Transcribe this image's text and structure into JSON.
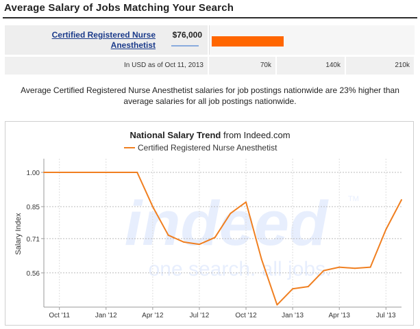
{
  "header": {
    "title": "Average Salary of Jobs Matching Your Search"
  },
  "salary_row": {
    "job_title": "Certified Registered Nurse Anesthetist",
    "salary": "$76,000",
    "bar_fraction_of_210k": 0.362,
    "bar_color": "#ff6600"
  },
  "scale_row": {
    "currency_note": "In USD as of Oct 11, 2013",
    "ticks": [
      "70k",
      "140k",
      "210k"
    ]
  },
  "summary": "Average Certified Registered Nurse Anesthetist salaries for job postings nationwide are 23% higher than average salaries for all job postings nationwide.",
  "watermark": {
    "brand": "indeed",
    "tagline": "one search. all jobs.",
    "tm": "TM"
  },
  "chart_data": {
    "type": "line",
    "title": "National Salary Trend",
    "title_suffix": "from Indeed.com",
    "ylabel": "Salary Index",
    "xlabel": "",
    "ylim": [
      0.41,
      1.06
    ],
    "yticks": [
      1.0,
      0.85,
      0.71,
      0.56
    ],
    "ytick_labels": [
      "1.00",
      "0.85",
      "0.71",
      "0.56"
    ],
    "xtick_labels": [
      "Oct '11",
      "Jan '12",
      "Apr '12",
      "Jul '12",
      "Oct '12",
      "Jan '13",
      "Apr '13",
      "Jul '13"
    ],
    "xtick_months": [
      1,
      4,
      7,
      10,
      13,
      16,
      19,
      22
    ],
    "grid": true,
    "legend_position": "top",
    "series": [
      {
        "name": "Certified Registered Nurse Anesthetist",
        "color": "#f07f20",
        "x_months": [
          0,
          1,
          2,
          3,
          4,
          5,
          6,
          7,
          8,
          9,
          10,
          11,
          12,
          13,
          14,
          15,
          16,
          17,
          18,
          19,
          20,
          21,
          22,
          23
        ],
        "values": [
          1.0,
          1.0,
          1.0,
          1.0,
          1.0,
          1.0,
          1.0,
          0.85,
          0.725,
          0.695,
          0.685,
          0.715,
          0.82,
          0.87,
          0.62,
          0.42,
          0.49,
          0.5,
          0.57,
          0.585,
          0.58,
          0.585,
          0.75,
          0.88
        ]
      }
    ]
  }
}
